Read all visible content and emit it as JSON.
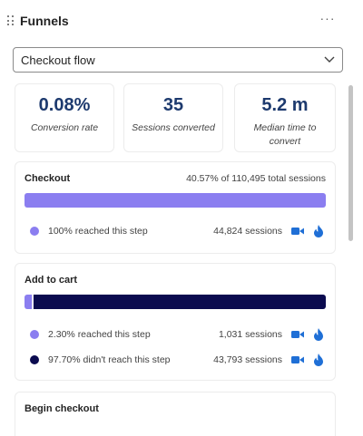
{
  "header": {
    "title": "Funnels",
    "more_label": "···",
    "drag_icon": "drag-handle-icon"
  },
  "funnel_select": {
    "value": "Checkout flow",
    "icon": "chevron-down-icon"
  },
  "stats": [
    {
      "value": "0.08%",
      "label": "Conversion rate"
    },
    {
      "value": "35",
      "label": "Sessions converted"
    },
    {
      "value": "5.2 m",
      "label": "Median time to convert"
    }
  ],
  "colors": {
    "accent_value": "#1d3a6e",
    "reached": "#8b7ef0",
    "not_reached": "#0b0b4f",
    "icon_blue": "#1f6fd6"
  },
  "steps": [
    {
      "name": "Checkout",
      "total": "40.57% of 110,495 total sessions",
      "reached_fraction": 1.0,
      "rows": [
        {
          "text": "100% reached this step",
          "sessions": "44,824 sessions",
          "kind": "reached"
        }
      ]
    },
    {
      "name": "Add to cart",
      "total": "",
      "reached_fraction": 0.023,
      "rows": [
        {
          "text": "2.30% reached this step",
          "sessions": "1,031 sessions",
          "kind": "reached"
        },
        {
          "text": "97.70% didn't reach this step",
          "sessions": "43,793 sessions",
          "kind": "not_reached"
        }
      ]
    },
    {
      "name": "Begin checkout",
      "total": "",
      "rows": []
    }
  ]
}
